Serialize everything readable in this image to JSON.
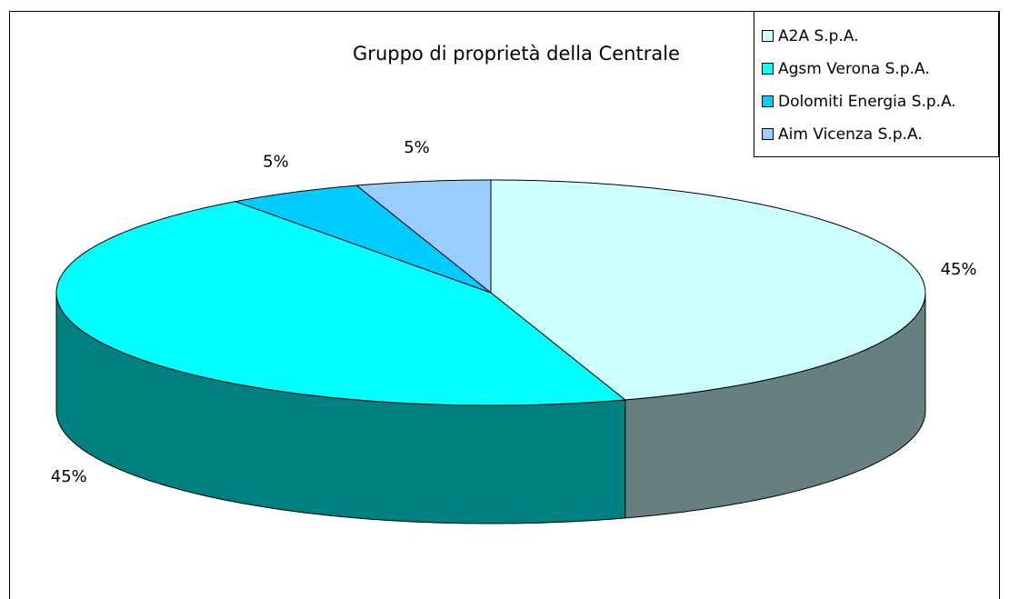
{
  "chart_data": {
    "type": "pie",
    "title": "Gruppo di proprietà della Centrale",
    "categories": [
      "A2A S.p.A.",
      "Agsm Verona S.p.A.",
      "Dolomiti Energia S.p.A.",
      "Aim Vicenza S.p.A."
    ],
    "values": [
      45,
      45,
      5,
      5
    ],
    "value_labels": [
      "45%",
      "45%",
      "5%",
      "5%"
    ],
    "colors": [
      "#ccffff",
      "#00ffff",
      "#00ccff",
      "#99ccff"
    ],
    "legend": "top-right"
  }
}
